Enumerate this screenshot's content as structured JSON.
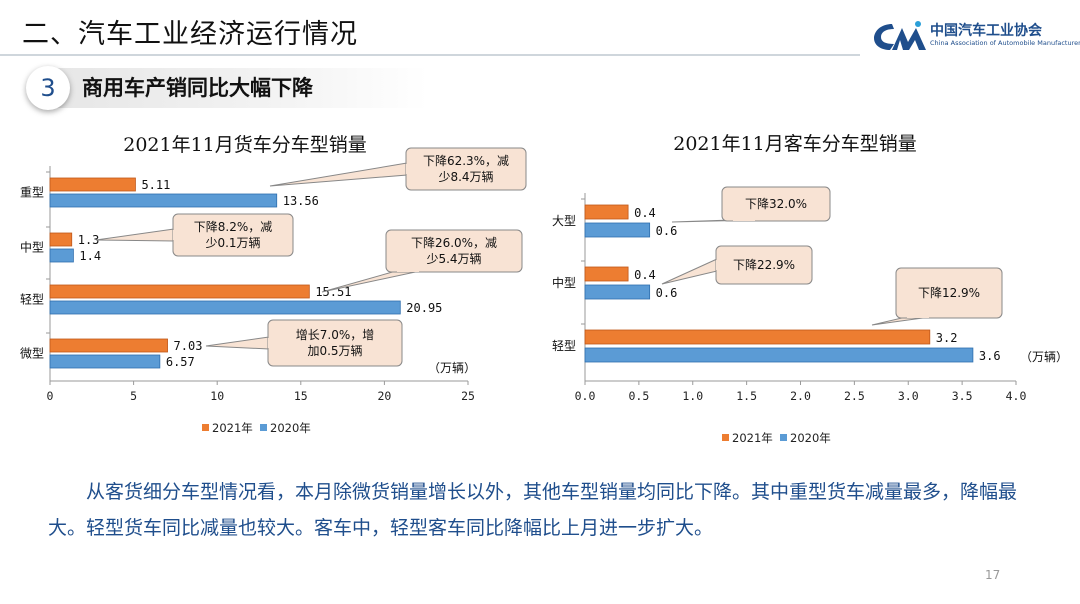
{
  "header": {
    "section_title": "二、汽车工业经济运行情况",
    "logo_cn": "中国汽车工业协会",
    "logo_en": "China Association of Automobile Manufacturers",
    "badge_number": "3",
    "subtitle": "商用车产销同比大幅下降"
  },
  "colors": {
    "y2021": "#ED7D31",
    "y2020": "#5B9BD5",
    "callout_fill": "#F8E3D4",
    "text_blue": "#1F4E8C"
  },
  "chart_data": [
    {
      "type": "bar",
      "orientation": "horizontal",
      "title": "2021年11月货车分车型销量",
      "categories": [
        "重型",
        "中型",
        "轻型",
        "微型"
      ],
      "series": [
        {
          "name": "2021年",
          "values": [
            5.11,
            1.3,
            15.51,
            7.03
          ],
          "labels": [
            "5.11",
            "1.3",
            "15.51",
            "7.03"
          ]
        },
        {
          "name": "2020年",
          "values": [
            13.56,
            1.4,
            20.95,
            6.57
          ],
          "labels": [
            "13.56",
            "1.4",
            "20.95",
            "6.57"
          ]
        }
      ],
      "xlim": [
        0,
        25
      ],
      "xticks": [
        "0",
        "5",
        "10",
        "15",
        "20",
        "25"
      ],
      "unit": "（万辆）",
      "legend_position": "bottom",
      "annotations": [
        {
          "lines": [
            "下降62.3%，减",
            "少8.4万辆"
          ]
        },
        {
          "lines": [
            "下降8.2%，减",
            "少0.1万辆"
          ]
        },
        {
          "lines": [
            "下降26.0%，减",
            "少5.4万辆"
          ]
        },
        {
          "lines": [
            "增长7.0%，增",
            "加0.5万辆"
          ]
        }
      ]
    },
    {
      "type": "bar",
      "orientation": "horizontal",
      "title": "2021年11月客车分车型销量",
      "categories": [
        "大型",
        "中型",
        "轻型"
      ],
      "series": [
        {
          "name": "2021年",
          "values": [
            0.4,
            0.4,
            3.2
          ],
          "labels": [
            "0.4",
            "0.4",
            "3.2"
          ]
        },
        {
          "name": "2020年",
          "values": [
            0.6,
            0.6,
            3.6
          ],
          "labels": [
            "0.6",
            "0.6",
            "3.6"
          ]
        }
      ],
      "xlim": [
        0,
        4.0
      ],
      "xticks": [
        "0.0",
        "0.5",
        "1.0",
        "1.5",
        "2.0",
        "2.5",
        "3.0",
        "3.5",
        "4.0"
      ],
      "unit": "（万辆）",
      "legend_position": "bottom",
      "annotations": [
        {
          "lines": [
            "下降32.0%"
          ]
        },
        {
          "lines": [
            "下降22.9%"
          ]
        },
        {
          "lines": [
            "下降12.9%"
          ]
        }
      ]
    }
  ],
  "body_text": "从客货细分车型情况看，本月除微货销量增长以外，其他车型销量均同比下降。其中重型货车减量最多，降幅最大。轻型货车同比减量也较大。客车中，轻型客车同比降幅比上月进一步扩大。",
  "page_number": "17"
}
